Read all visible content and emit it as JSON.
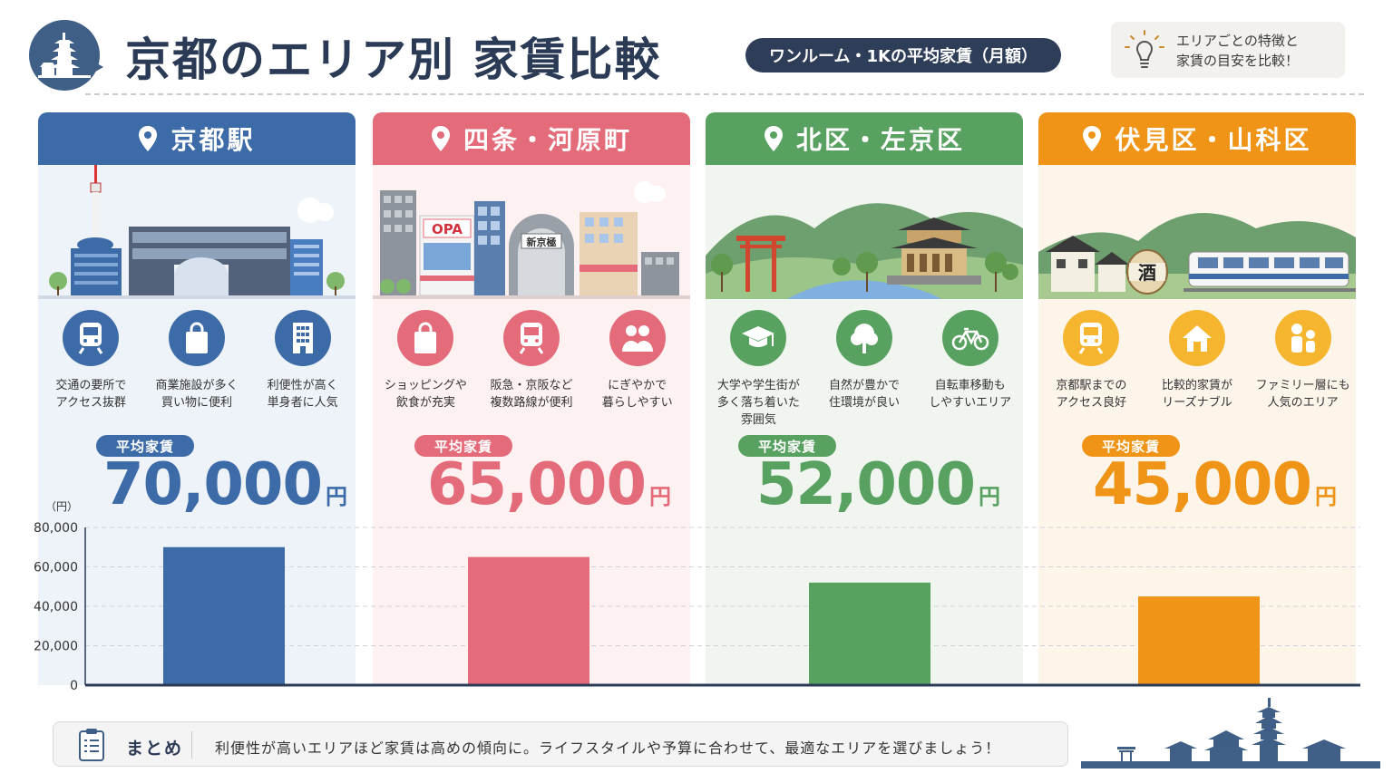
{
  "header": {
    "title": "京都のエリア別 家賃比較",
    "subtitle": "ワンルーム・1Kの平均家賃（月額）",
    "tip_line1": "エリアごとの特徴と",
    "tip_line2": "家賃の目安を比較！"
  },
  "colors": {
    "blue": "#3c6ba8",
    "pink": "#e46b79",
    "green": "#58a160",
    "orange": "#ef9417",
    "navy": "#2b3a55"
  },
  "areas": [
    {
      "name": "京都駅",
      "scene_labels": [],
      "features": [
        {
          "icon": "train-icon",
          "text": "交通の要所で\nアクセス抜群"
        },
        {
          "icon": "shopping-bag-icon",
          "text": "商業施設が多く\n買い物に便利"
        },
        {
          "icon": "building-icon",
          "text": "利便性が高く\n単身者に人気"
        }
      ],
      "avg_label": "平均家賃",
      "price": "70,000",
      "unit": "円"
    },
    {
      "name": "四条・河原町",
      "scene_labels": [
        "OPA",
        "新京極"
      ],
      "features": [
        {
          "icon": "shopping-bag-icon",
          "text": "ショッピングや\n飲食が充実"
        },
        {
          "icon": "train-icon",
          "text": "阪急・京阪など\n複数路線が便利"
        },
        {
          "icon": "people-icon",
          "text": "にぎやかで\n暮らしやすい"
        }
      ],
      "avg_label": "平均家賃",
      "price": "65,000",
      "unit": "円"
    },
    {
      "name": "北区・左京区",
      "scene_labels": [],
      "features": [
        {
          "icon": "graduation-cap-icon",
          "text": "大学や学生街が\n多く落ち着いた\n雰囲気"
        },
        {
          "icon": "tree-icon",
          "text": "自然が豊かで\n住環境が良い"
        },
        {
          "icon": "bicycle-icon",
          "text": "自転車移動も\nしやすいエリア"
        }
      ],
      "avg_label": "平均家賃",
      "price": "52,000",
      "unit": "円"
    },
    {
      "name": "伏見区・山科区",
      "scene_labels": [
        "酒"
      ],
      "features": [
        {
          "icon": "train-icon",
          "text": "京都駅までの\nアクセス良好"
        },
        {
          "icon": "house-icon",
          "text": "比較的家賃が\nリーズナブル"
        },
        {
          "icon": "family-icon",
          "text": "ファミリー層にも\n人気のエリア"
        }
      ],
      "avg_label": "平均家賃",
      "price": "45,000",
      "unit": "円"
    }
  ],
  "chart_data": {
    "type": "bar",
    "categories": [
      "京都駅",
      "四条・河原町",
      "北区・左京区",
      "伏見区・山科区"
    ],
    "values": [
      70000,
      65000,
      52000,
      45000
    ],
    "colors": [
      "#3c6ba8",
      "#e46b79",
      "#58a160",
      "#ef9417"
    ],
    "ylabel": "（円）",
    "ylim": [
      0,
      80000
    ],
    "yticks": [
      "0",
      "20,000",
      "40,000",
      "60,000",
      "80,000"
    ],
    "grid": true
  },
  "summary": {
    "label": "まとめ",
    "text": "利便性が高いエリアほど家賃は高めの傾向に。ライフスタイルや予算に合わせて、最適なエリアを選びましょう！"
  }
}
